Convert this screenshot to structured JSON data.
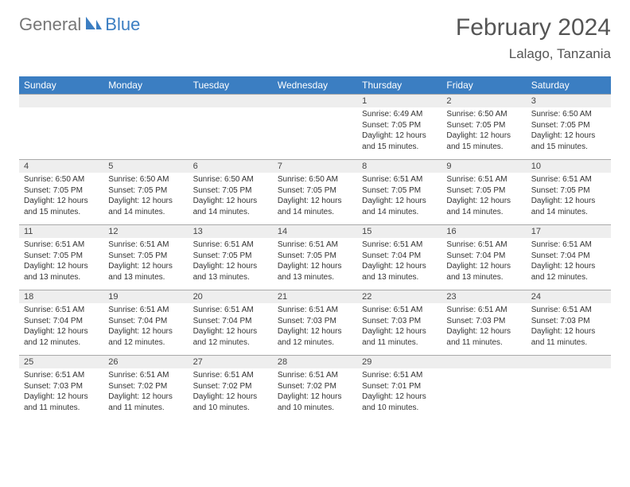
{
  "logo": {
    "text1": "General",
    "text2": "Blue"
  },
  "title": "February 2024",
  "location": "Lalago, Tanzania",
  "colors": {
    "header_bg": "#3b7ec2",
    "header_text": "#ffffff",
    "daynum_bg": "#eeeeee",
    "border": "#aaaaaa",
    "body_text": "#333333",
    "title_text": "#555555",
    "logo_gray": "#777777",
    "logo_blue": "#3b7ec2",
    "page_bg": "#ffffff"
  },
  "fonts": {
    "dayname_size": 12,
    "daynum_size": 11,
    "body_size": 10,
    "title_size": 30,
    "location_size": 17
  },
  "daynames": [
    "Sunday",
    "Monday",
    "Tuesday",
    "Wednesday",
    "Thursday",
    "Friday",
    "Saturday"
  ],
  "weeks": [
    [
      {
        "n": "",
        "sr": "",
        "ss": "",
        "dl": ""
      },
      {
        "n": "",
        "sr": "",
        "ss": "",
        "dl": ""
      },
      {
        "n": "",
        "sr": "",
        "ss": "",
        "dl": ""
      },
      {
        "n": "",
        "sr": "",
        "ss": "",
        "dl": ""
      },
      {
        "n": "1",
        "sr": "Sunrise: 6:49 AM",
        "ss": "Sunset: 7:05 PM",
        "dl": "Daylight: 12 hours and 15 minutes."
      },
      {
        "n": "2",
        "sr": "Sunrise: 6:50 AM",
        "ss": "Sunset: 7:05 PM",
        "dl": "Daylight: 12 hours and 15 minutes."
      },
      {
        "n": "3",
        "sr": "Sunrise: 6:50 AM",
        "ss": "Sunset: 7:05 PM",
        "dl": "Daylight: 12 hours and 15 minutes."
      }
    ],
    [
      {
        "n": "4",
        "sr": "Sunrise: 6:50 AM",
        "ss": "Sunset: 7:05 PM",
        "dl": "Daylight: 12 hours and 15 minutes."
      },
      {
        "n": "5",
        "sr": "Sunrise: 6:50 AM",
        "ss": "Sunset: 7:05 PM",
        "dl": "Daylight: 12 hours and 14 minutes."
      },
      {
        "n": "6",
        "sr": "Sunrise: 6:50 AM",
        "ss": "Sunset: 7:05 PM",
        "dl": "Daylight: 12 hours and 14 minutes."
      },
      {
        "n": "7",
        "sr": "Sunrise: 6:50 AM",
        "ss": "Sunset: 7:05 PM",
        "dl": "Daylight: 12 hours and 14 minutes."
      },
      {
        "n": "8",
        "sr": "Sunrise: 6:51 AM",
        "ss": "Sunset: 7:05 PM",
        "dl": "Daylight: 12 hours and 14 minutes."
      },
      {
        "n": "9",
        "sr": "Sunrise: 6:51 AM",
        "ss": "Sunset: 7:05 PM",
        "dl": "Daylight: 12 hours and 14 minutes."
      },
      {
        "n": "10",
        "sr": "Sunrise: 6:51 AM",
        "ss": "Sunset: 7:05 PM",
        "dl": "Daylight: 12 hours and 14 minutes."
      }
    ],
    [
      {
        "n": "11",
        "sr": "Sunrise: 6:51 AM",
        "ss": "Sunset: 7:05 PM",
        "dl": "Daylight: 12 hours and 13 minutes."
      },
      {
        "n": "12",
        "sr": "Sunrise: 6:51 AM",
        "ss": "Sunset: 7:05 PM",
        "dl": "Daylight: 12 hours and 13 minutes."
      },
      {
        "n": "13",
        "sr": "Sunrise: 6:51 AM",
        "ss": "Sunset: 7:05 PM",
        "dl": "Daylight: 12 hours and 13 minutes."
      },
      {
        "n": "14",
        "sr": "Sunrise: 6:51 AM",
        "ss": "Sunset: 7:05 PM",
        "dl": "Daylight: 12 hours and 13 minutes."
      },
      {
        "n": "15",
        "sr": "Sunrise: 6:51 AM",
        "ss": "Sunset: 7:04 PM",
        "dl": "Daylight: 12 hours and 13 minutes."
      },
      {
        "n": "16",
        "sr": "Sunrise: 6:51 AM",
        "ss": "Sunset: 7:04 PM",
        "dl": "Daylight: 12 hours and 13 minutes."
      },
      {
        "n": "17",
        "sr": "Sunrise: 6:51 AM",
        "ss": "Sunset: 7:04 PM",
        "dl": "Daylight: 12 hours and 12 minutes."
      }
    ],
    [
      {
        "n": "18",
        "sr": "Sunrise: 6:51 AM",
        "ss": "Sunset: 7:04 PM",
        "dl": "Daylight: 12 hours and 12 minutes."
      },
      {
        "n": "19",
        "sr": "Sunrise: 6:51 AM",
        "ss": "Sunset: 7:04 PM",
        "dl": "Daylight: 12 hours and 12 minutes."
      },
      {
        "n": "20",
        "sr": "Sunrise: 6:51 AM",
        "ss": "Sunset: 7:04 PM",
        "dl": "Daylight: 12 hours and 12 minutes."
      },
      {
        "n": "21",
        "sr": "Sunrise: 6:51 AM",
        "ss": "Sunset: 7:03 PM",
        "dl": "Daylight: 12 hours and 12 minutes."
      },
      {
        "n": "22",
        "sr": "Sunrise: 6:51 AM",
        "ss": "Sunset: 7:03 PM",
        "dl": "Daylight: 12 hours and 11 minutes."
      },
      {
        "n": "23",
        "sr": "Sunrise: 6:51 AM",
        "ss": "Sunset: 7:03 PM",
        "dl": "Daylight: 12 hours and 11 minutes."
      },
      {
        "n": "24",
        "sr": "Sunrise: 6:51 AM",
        "ss": "Sunset: 7:03 PM",
        "dl": "Daylight: 12 hours and 11 minutes."
      }
    ],
    [
      {
        "n": "25",
        "sr": "Sunrise: 6:51 AM",
        "ss": "Sunset: 7:03 PM",
        "dl": "Daylight: 12 hours and 11 minutes."
      },
      {
        "n": "26",
        "sr": "Sunrise: 6:51 AM",
        "ss": "Sunset: 7:02 PM",
        "dl": "Daylight: 12 hours and 11 minutes."
      },
      {
        "n": "27",
        "sr": "Sunrise: 6:51 AM",
        "ss": "Sunset: 7:02 PM",
        "dl": "Daylight: 12 hours and 10 minutes."
      },
      {
        "n": "28",
        "sr": "Sunrise: 6:51 AM",
        "ss": "Sunset: 7:02 PM",
        "dl": "Daylight: 12 hours and 10 minutes."
      },
      {
        "n": "29",
        "sr": "Sunrise: 6:51 AM",
        "ss": "Sunset: 7:01 PM",
        "dl": "Daylight: 12 hours and 10 minutes."
      },
      {
        "n": "",
        "sr": "",
        "ss": "",
        "dl": ""
      },
      {
        "n": "",
        "sr": "",
        "ss": "",
        "dl": ""
      }
    ]
  ]
}
